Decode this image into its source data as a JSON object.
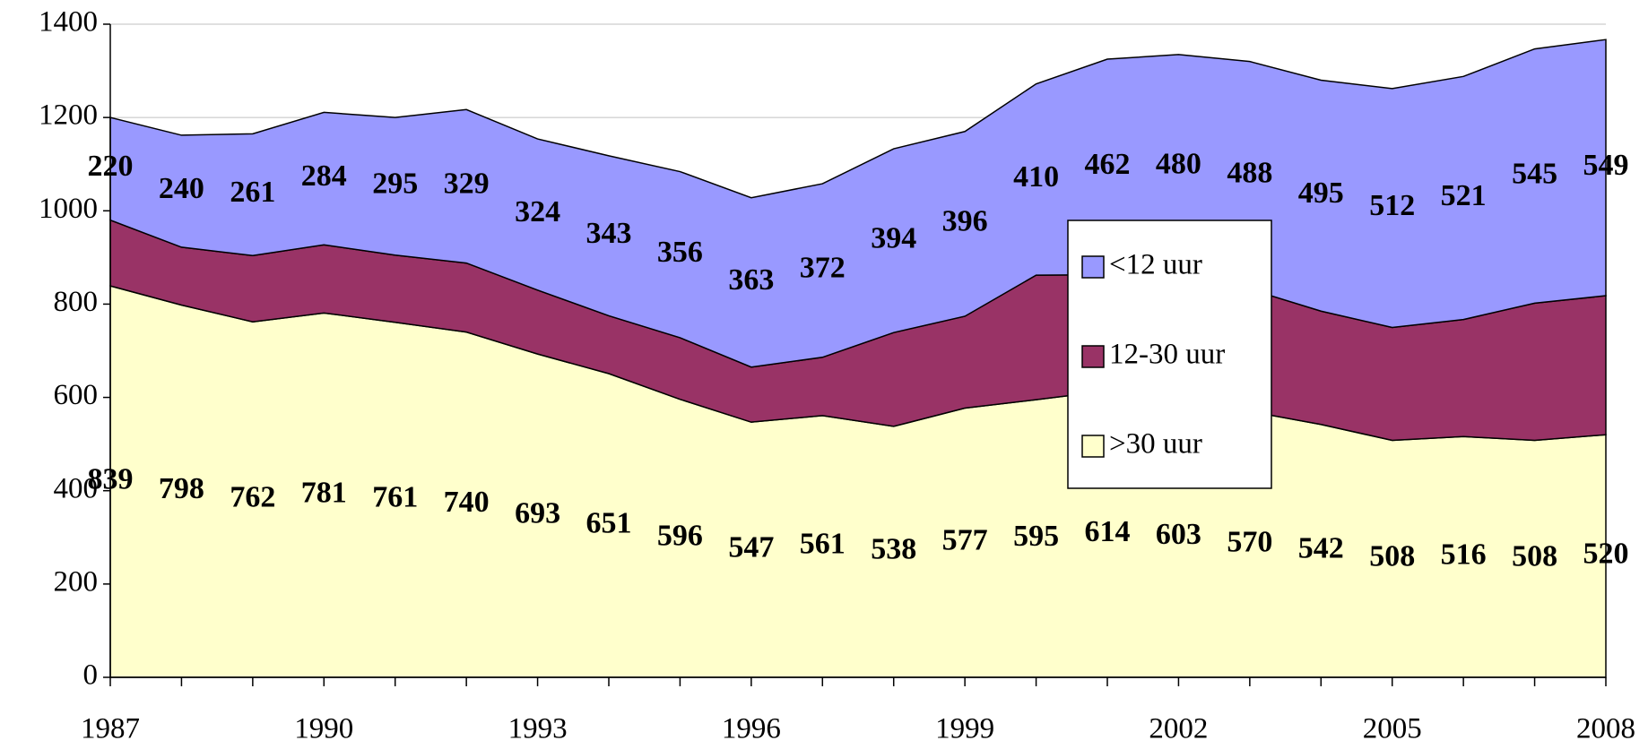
{
  "chart_data": {
    "type": "stacked_area",
    "categories": [
      "1987",
      null,
      null,
      "1990",
      null,
      null,
      "1993",
      null,
      null,
      "1996",
      null,
      null,
      "1999",
      null,
      null,
      "2002",
      null,
      null,
      "2005",
      null,
      null,
      "2008"
    ],
    "series": [
      {
        "name": ">30 uur",
        "color": "#ffffcc",
        "labels": true,
        "values": [
          839,
          798,
          762,
          781,
          761,
          740,
          693,
          651,
          596,
          547,
          561,
          538,
          577,
          595,
          614,
          603,
          570,
          542,
          508,
          516,
          508,
          520
        ]
      },
      {
        "name": "12-30 uur",
        "color": "#993366",
        "labels": false,
        "values": [
          141,
          124,
          142,
          146,
          144,
          148,
          137,
          124,
          132,
          118,
          125,
          201,
          197,
          267,
          249,
          252,
          262,
          243,
          242,
          251,
          294,
          298
        ]
      },
      {
        "name": "<12 uur",
        "color": "#9999ff",
        "labels": true,
        "values": [
          220,
          240,
          261,
          284,
          295,
          329,
          324,
          343,
          356,
          363,
          372,
          394,
          396,
          410,
          462,
          480,
          488,
          495,
          512,
          521,
          545,
          549
        ]
      }
    ],
    "ylim": [
      0,
      1400
    ],
    "yticks": [
      0,
      200,
      400,
      600,
      800,
      1000,
      1200,
      1400
    ],
    "grid": true
  }
}
